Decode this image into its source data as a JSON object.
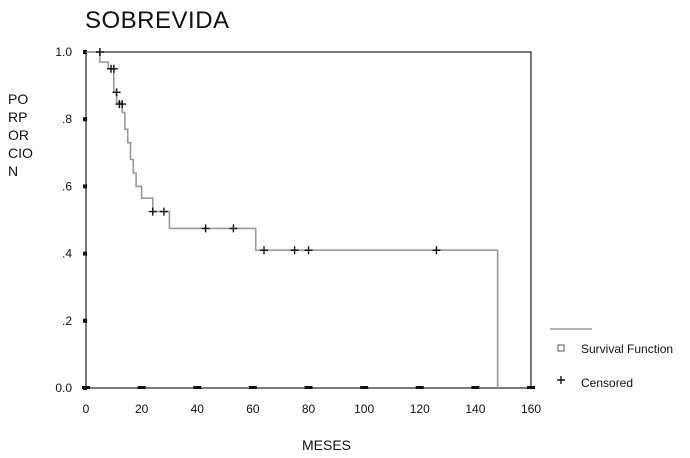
{
  "chart_data": {
    "type": "line",
    "title": "SOBREVIDA",
    "xlabel": "MESES",
    "ylabel_lines": [
      "PO",
      "RP",
      "OR",
      "CIO",
      "N"
    ],
    "xlim": [
      0,
      160
    ],
    "ylim": [
      0,
      1
    ],
    "x_ticks": [
      0,
      20,
      40,
      60,
      80,
      100,
      120,
      140,
      160
    ],
    "x_tick_labels": [
      "0",
      "20",
      "40",
      "60",
      "80",
      "100",
      "120",
      "140",
      "160"
    ],
    "y_ticks": [
      0,
      0.2,
      0.4,
      0.6,
      0.8,
      1.0
    ],
    "y_tick_labels": [
      "0.0",
      ".2",
      ".4",
      ".6",
      ".8",
      "1.0"
    ],
    "grid": false,
    "legend_position": "bottom-right",
    "series": [
      {
        "name": "Survival Function",
        "color": "#9a9a9a",
        "step_points": [
          [
            0,
            1.0
          ],
          [
            5,
            1.0
          ],
          [
            5,
            0.97
          ],
          [
            8,
            0.97
          ],
          [
            8,
            0.95
          ],
          [
            10,
            0.95
          ],
          [
            10,
            0.88
          ],
          [
            11,
            0.88
          ],
          [
            11,
            0.85
          ],
          [
            13,
            0.85
          ],
          [
            13,
            0.82
          ],
          [
            14,
            0.82
          ],
          [
            14,
            0.77
          ],
          [
            15,
            0.77
          ],
          [
            15,
            0.73
          ],
          [
            16,
            0.73
          ],
          [
            16,
            0.68
          ],
          [
            17,
            0.68
          ],
          [
            17,
            0.64
          ],
          [
            18,
            0.64
          ],
          [
            18,
            0.6
          ],
          [
            20,
            0.6
          ],
          [
            20,
            0.565
          ],
          [
            24,
            0.565
          ],
          [
            24,
            0.525
          ],
          [
            30,
            0.525
          ],
          [
            30,
            0.475
          ],
          [
            61,
            0.475
          ],
          [
            61,
            0.41
          ],
          [
            148,
            0.41
          ],
          [
            148,
            0.0
          ]
        ]
      },
      {
        "name": "Censored",
        "marker": "plus",
        "points": [
          [
            5,
            1.0
          ],
          [
            9,
            0.95
          ],
          [
            10,
            0.95
          ],
          [
            11,
            0.88
          ],
          [
            12,
            0.845
          ],
          [
            13,
            0.845
          ],
          [
            24,
            0.525
          ],
          [
            28,
            0.525
          ],
          [
            43,
            0.475
          ],
          [
            53,
            0.475
          ],
          [
            64,
            0.41
          ],
          [
            75,
            0.41
          ],
          [
            80,
            0.41
          ],
          [
            126,
            0.41
          ]
        ]
      }
    ],
    "legend": {
      "items": [
        {
          "label": "Survival Function",
          "symbol": "square"
        },
        {
          "label": "Censored",
          "symbol": "plus"
        }
      ]
    }
  }
}
